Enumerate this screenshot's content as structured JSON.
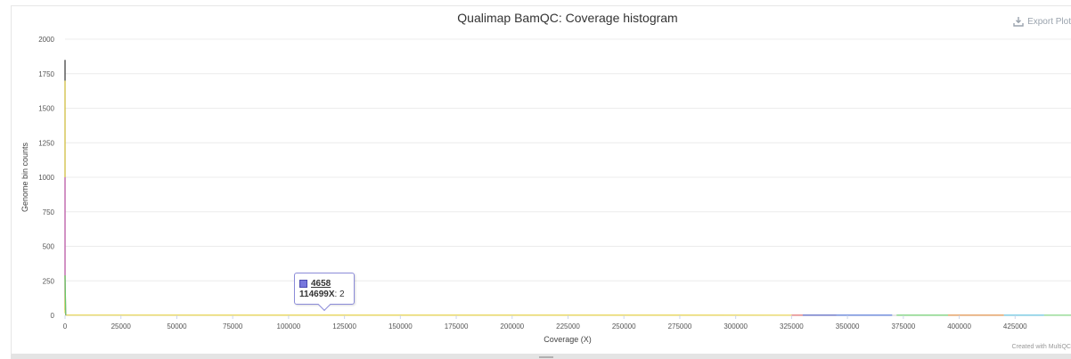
{
  "chart_data": {
    "type": "line",
    "title": "Qualimap BamQC: Coverage histogram",
    "xlabel": "Coverage (X)",
    "ylabel": "Genome bin counts",
    "xlim": [
      0,
      450000
    ],
    "ylim": [
      0,
      2000
    ],
    "xticks": [
      0,
      25000,
      50000,
      75000,
      100000,
      125000,
      150000,
      175000,
      200000,
      225000,
      250000,
      275000,
      300000,
      325000,
      350000,
      375000,
      400000,
      425000
    ],
    "yticks": [
      0,
      250,
      500,
      750,
      1000,
      1250,
      1500,
      1750,
      2000
    ],
    "grid": true,
    "legend": "none",
    "series": [
      {
        "color": "#333333",
        "x": [
          0,
          1,
          400
        ],
        "y": [
          1850,
          40,
          1
        ]
      },
      {
        "color": "#e8d44d",
        "x": [
          0,
          1,
          500,
          325000
        ],
        "y": [
          1700,
          20,
          2,
          1
        ]
      },
      {
        "color": "#cc66cc",
        "x": [
          0,
          1,
          300
        ],
        "y": [
          1000,
          280,
          1
        ]
      },
      {
        "color": "#66cc66",
        "x": [
          0,
          300
        ],
        "y": [
          290,
          1
        ]
      },
      {
        "color": "#e06666",
        "x": [
          325000,
          345000
        ],
        "y": [
          1,
          1
        ]
      },
      {
        "color": "#4a6fd6",
        "x": [
          330000,
          370000
        ],
        "y": [
          1,
          1
        ]
      },
      {
        "color": "#66cc66",
        "x": [
          372000,
          395000
        ],
        "y": [
          1,
          1
        ]
      },
      {
        "color": "#e08a3c",
        "x": [
          395000,
          420000
        ],
        "y": [
          1,
          1
        ]
      },
      {
        "color": "#5bc0de",
        "x": [
          420000,
          438000
        ],
        "y": [
          1,
          1
        ]
      },
      {
        "color": "#7ed67e",
        "x": [
          438000,
          450000
        ],
        "y": [
          1,
          1
        ]
      }
    ]
  },
  "export": {
    "label": "Export Plot",
    "icon": "download-icon"
  },
  "tooltip": {
    "sample": "4658",
    "x_label": "114699X",
    "value_text": ": 2",
    "color": "#7777dd"
  },
  "credits": "Created with MultiQC"
}
